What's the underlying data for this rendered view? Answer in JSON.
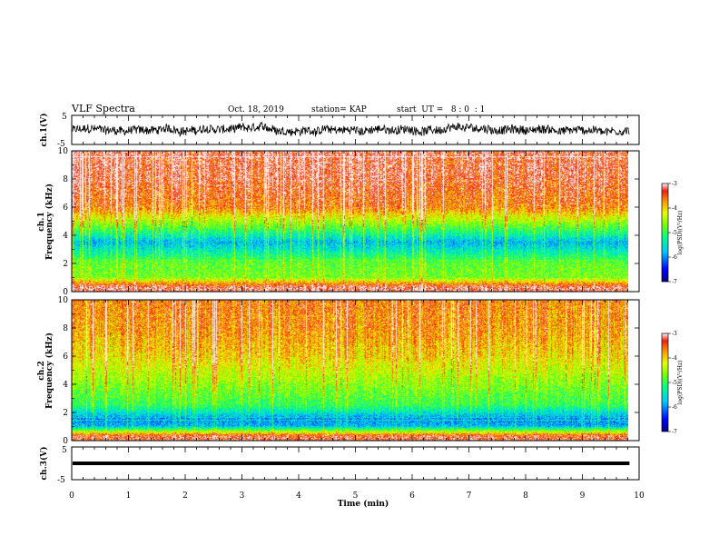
{
  "chart_data": {
    "type": "heatmap",
    "header": {
      "title": "VLF Spectra",
      "date": "Oct. 18, 2019",
      "station": "station= KAP",
      "start": "start  UT =   8 : 0  : 1"
    },
    "x_axis": {
      "label": "Time  (min)",
      "range": [
        0,
        10
      ],
      "ticks": [
        "0",
        "1",
        "2",
        "3",
        "4",
        "5",
        "6",
        "7",
        "8",
        "9",
        "10"
      ]
    },
    "panels": [
      {
        "id": "ch1-waveform",
        "type": "line",
        "ylabel": "ch.1(V)",
        "ylim": [
          -5,
          5
        ],
        "ytick_labels": [
          "5",
          "-5"
        ],
        "signal": "noisy waveform",
        "mean_value": 0,
        "amplitude": 1.5
      },
      {
        "id": "ch1-spectrogram",
        "type": "heatmap",
        "ylabel": "ch.1\nFrequency  (kHz)",
        "ylim": [
          0,
          10
        ],
        "ytick_labels": [
          "0",
          "2",
          "4",
          "6",
          "8",
          "10"
        ],
        "colorbar": {
          "label": "log(PSD)(V²/Hz)",
          "range": [
            -7,
            -3
          ],
          "ticks": [
            "-3",
            "-4",
            "-5",
            "-6",
            "-7"
          ]
        },
        "profile": [
          {
            "f_khz": 0.3,
            "log_psd": -3.2
          },
          {
            "f_khz": 1.0,
            "log_psd": -4.7
          },
          {
            "f_khz": 2.0,
            "log_psd": -4.8
          },
          {
            "f_khz": 3.0,
            "log_psd": -5.5
          },
          {
            "f_khz": 3.5,
            "log_psd": -5.8
          },
          {
            "f_khz": 4.5,
            "log_psd": -4.9
          },
          {
            "f_khz": 6.0,
            "log_psd": -3.6
          },
          {
            "f_khz": 8.0,
            "log_psd": -3.3
          },
          {
            "f_khz": 10.0,
            "log_psd": -3.2
          }
        ]
      },
      {
        "id": "ch2-spectrogram",
        "type": "heatmap",
        "ylabel": "ch.2\nFrequency  (kHz)",
        "ylim": [
          0,
          10
        ],
        "ytick_labels": [
          "0",
          "2",
          "4",
          "6",
          "8",
          "10"
        ],
        "colorbar": {
          "label": "log(PSD)(V²/Hz)",
          "range": [
            -7,
            -3
          ],
          "ticks": [
            "-3",
            "-4",
            "-5",
            "-6",
            "-7"
          ]
        },
        "profile": [
          {
            "f_khz": 0.3,
            "log_psd": -3.3
          },
          {
            "f_khz": 1.0,
            "log_psd": -5.8
          },
          {
            "f_khz": 1.5,
            "log_psd": -6.0
          },
          {
            "f_khz": 2.5,
            "log_psd": -5.0
          },
          {
            "f_khz": 4.0,
            "log_psd": -4.6
          },
          {
            "f_khz": 6.0,
            "log_psd": -4.0
          },
          {
            "f_khz": 8.0,
            "log_psd": -3.7
          },
          {
            "f_khz": 10.0,
            "log_psd": -3.6
          }
        ]
      },
      {
        "id": "ch3-waveform",
        "type": "line",
        "ylabel": "ch.3(V)",
        "ylim": [
          -5,
          5
        ],
        "ytick_labels": [
          "5",
          "-5"
        ],
        "signal": "flat line",
        "mean_value": 0,
        "amplitude": 0
      }
    ],
    "data_end_min": 9.83
  }
}
